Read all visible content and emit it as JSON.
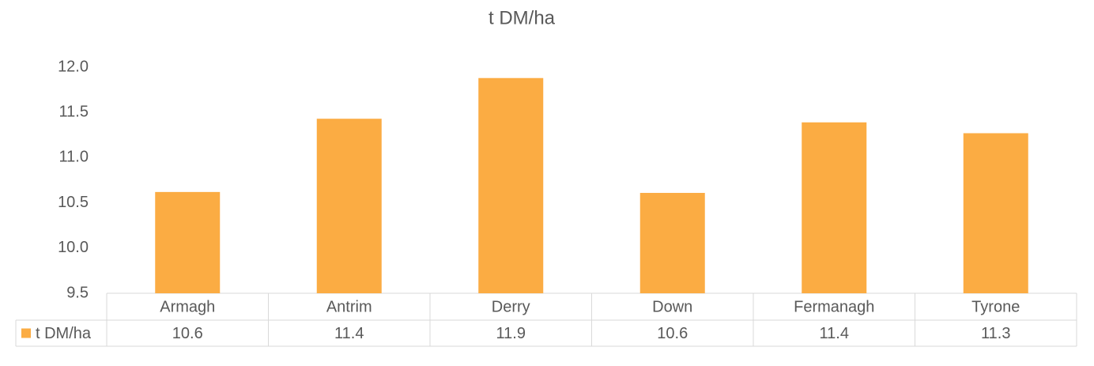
{
  "chart_data": {
    "type": "bar",
    "title": "t DM/ha",
    "categories": [
      "Armagh",
      "Antrim",
      "Derry",
      "Down",
      "Fermanagh",
      "Tyrone"
    ],
    "series": [
      {
        "name": "t DM/ha",
        "color": "#fbac43",
        "values": [
          10.62,
          11.43,
          11.88,
          10.61,
          11.39,
          11.27
        ],
        "value_labels": [
          "10.6",
          "11.4",
          "11.9",
          "10.6",
          "11.4",
          "11.3"
        ]
      }
    ],
    "ylim": [
      9.5,
      12
    ],
    "yticks": [
      9.5,
      {
        "value": 10,
        "label": "10.0"
      },
      10.5,
      {
        "value": 11,
        "label": "11.0"
      },
      11.5,
      {
        "value": 12,
        "label": "12.0"
      }
    ],
    "grid": false
  }
}
